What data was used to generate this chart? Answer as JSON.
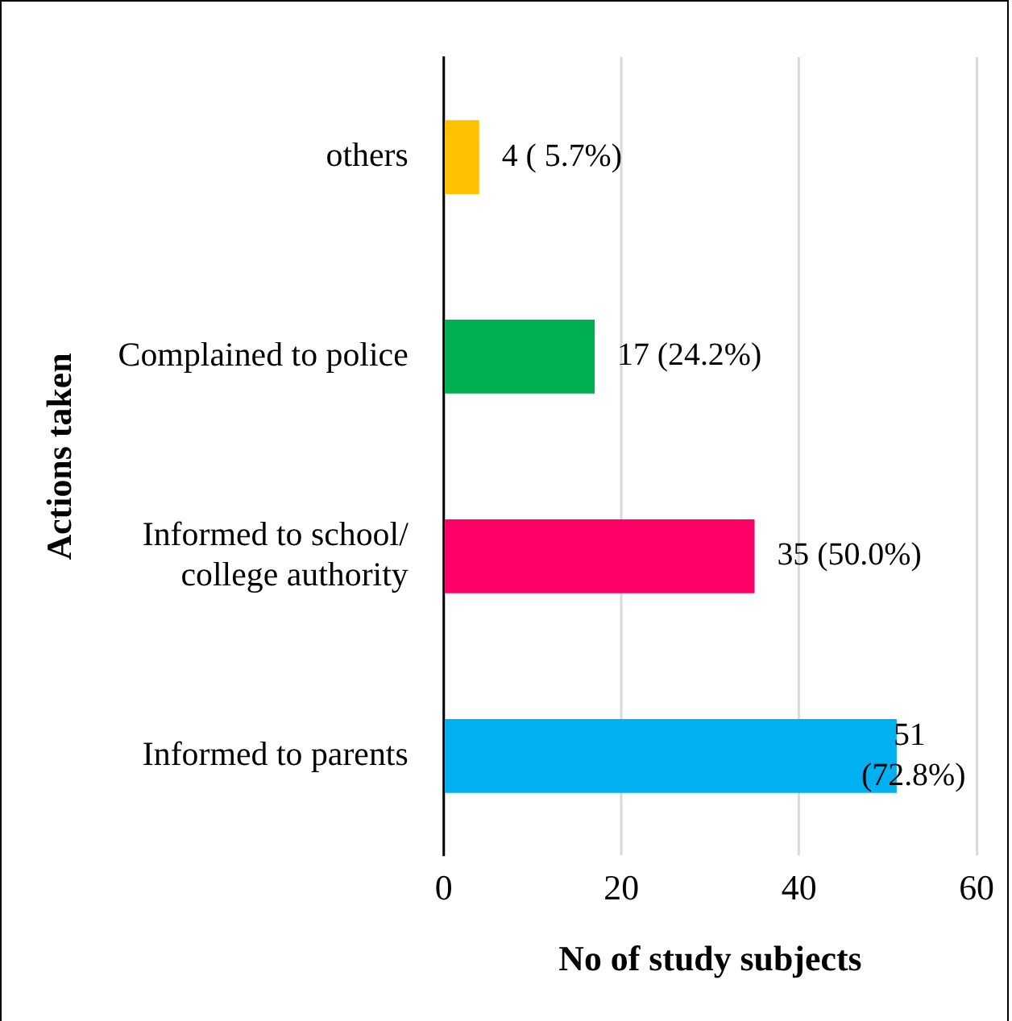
{
  "chart_data": {
    "type": "bar",
    "orientation": "horizontal",
    "xlabel": "No of study subjects",
    "ylabel": "Actions taken",
    "categories": [
      "others",
      "Complained to police",
      "Informed to school/ college authority",
      "Informed to parents"
    ],
    "values": [
      4,
      17,
      35,
      51
    ],
    "colors": [
      "#ffc000",
      "#00b050",
      "#ff0066",
      "#00b0f0"
    ],
    "value_labels": [
      "4 ( 5.7%)",
      "17 (24.2%)",
      "35 (50.0%)",
      "51 (72.8%)"
    ],
    "xlim": [
      0,
      60
    ],
    "xticks": [
      0,
      20,
      40,
      60
    ],
    "grid": "x",
    "legend": false
  }
}
